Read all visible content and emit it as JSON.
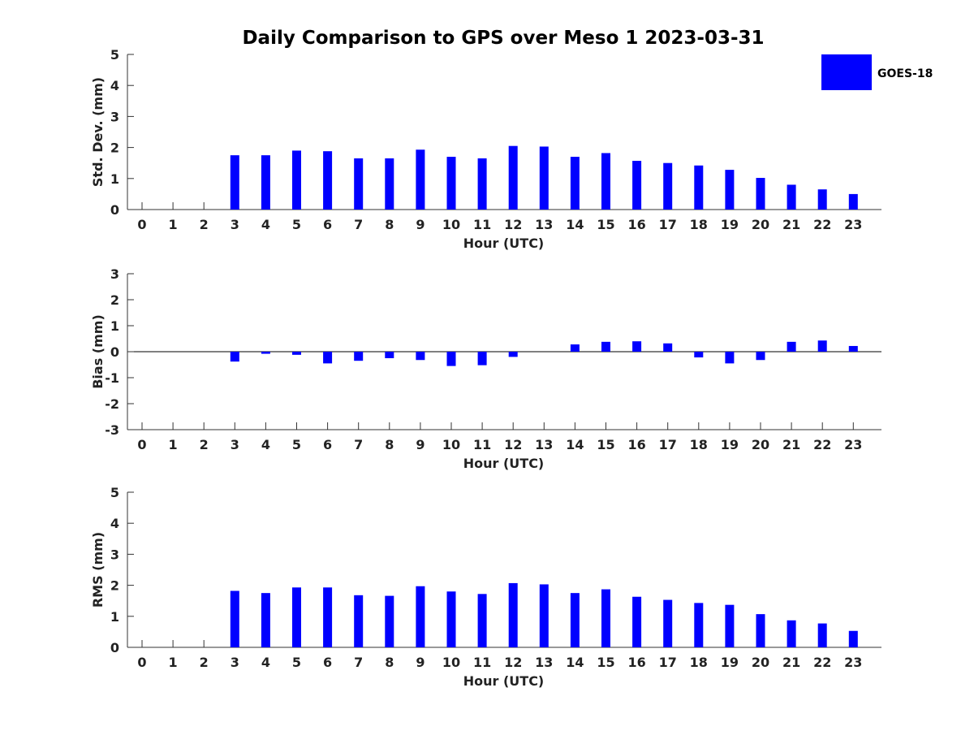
{
  "figure": {
    "title": "Daily Comparison to GPS over Meso 1 2023-03-31",
    "legend": {
      "label": "GOES-18",
      "color": "#0000ff",
      "placement": "top-right"
    }
  },
  "chart_data": [
    {
      "type": "bar",
      "xlabel": "Hour (UTC)",
      "ylabel": "Std. Dev. (mm)",
      "ylim": [
        0,
        5
      ],
      "yticks": [
        0,
        1,
        2,
        3,
        4,
        5
      ],
      "grid": false,
      "categories": [
        "0",
        "1",
        "2",
        "3",
        "4",
        "5",
        "6",
        "7",
        "8",
        "9",
        "10",
        "11",
        "12",
        "13",
        "14",
        "15",
        "16",
        "17",
        "18",
        "19",
        "20",
        "21",
        "22",
        "23"
      ],
      "series": [
        {
          "name": "GOES-18",
          "color": "#0000ff",
          "values": [
            null,
            null,
            null,
            1.75,
            1.75,
            1.9,
            1.88,
            1.65,
            1.65,
            1.93,
            1.7,
            1.65,
            2.05,
            2.03,
            1.7,
            1.82,
            1.57,
            1.5,
            1.42,
            1.28,
            1.02,
            0.8,
            0.65,
            0.5
          ]
        }
      ]
    },
    {
      "type": "bar",
      "xlabel": "Hour (UTC)",
      "ylabel": "Bias (mm)",
      "ylim": [
        -3,
        3
      ],
      "yticks": [
        -3,
        -2,
        -1,
        0,
        1,
        2,
        3
      ],
      "grid": false,
      "categories": [
        "0",
        "1",
        "2",
        "3",
        "4",
        "5",
        "6",
        "7",
        "8",
        "9",
        "10",
        "11",
        "12",
        "13",
        "14",
        "15",
        "16",
        "17",
        "18",
        "19",
        "20",
        "21",
        "22",
        "23"
      ],
      "series": [
        {
          "name": "GOES-18",
          "color": "#0000ff",
          "values": [
            null,
            null,
            null,
            -0.38,
            -0.08,
            -0.12,
            -0.45,
            -0.35,
            -0.25,
            -0.32,
            -0.55,
            -0.52,
            -0.2,
            0.0,
            0.28,
            0.38,
            0.4,
            0.32,
            -0.22,
            -0.45,
            -0.32,
            0.38,
            0.43,
            0.22
          ]
        }
      ]
    },
    {
      "type": "bar",
      "xlabel": "Hour (UTC)",
      "ylabel": "RMS (mm)",
      "ylim": [
        0,
        5
      ],
      "yticks": [
        0,
        1,
        2,
        3,
        4,
        5
      ],
      "grid": false,
      "categories": [
        "0",
        "1",
        "2",
        "3",
        "4",
        "5",
        "6",
        "7",
        "8",
        "9",
        "10",
        "11",
        "12",
        "13",
        "14",
        "15",
        "16",
        "17",
        "18",
        "19",
        "20",
        "21",
        "22",
        "23"
      ],
      "series": [
        {
          "name": "GOES-18",
          "color": "#0000ff",
          "values": [
            null,
            null,
            null,
            1.82,
            1.75,
            1.93,
            1.93,
            1.68,
            1.66,
            1.97,
            1.8,
            1.72,
            2.07,
            2.03,
            1.75,
            1.87,
            1.63,
            1.53,
            1.43,
            1.37,
            1.07,
            0.87,
            0.77,
            0.53
          ]
        }
      ]
    }
  ]
}
